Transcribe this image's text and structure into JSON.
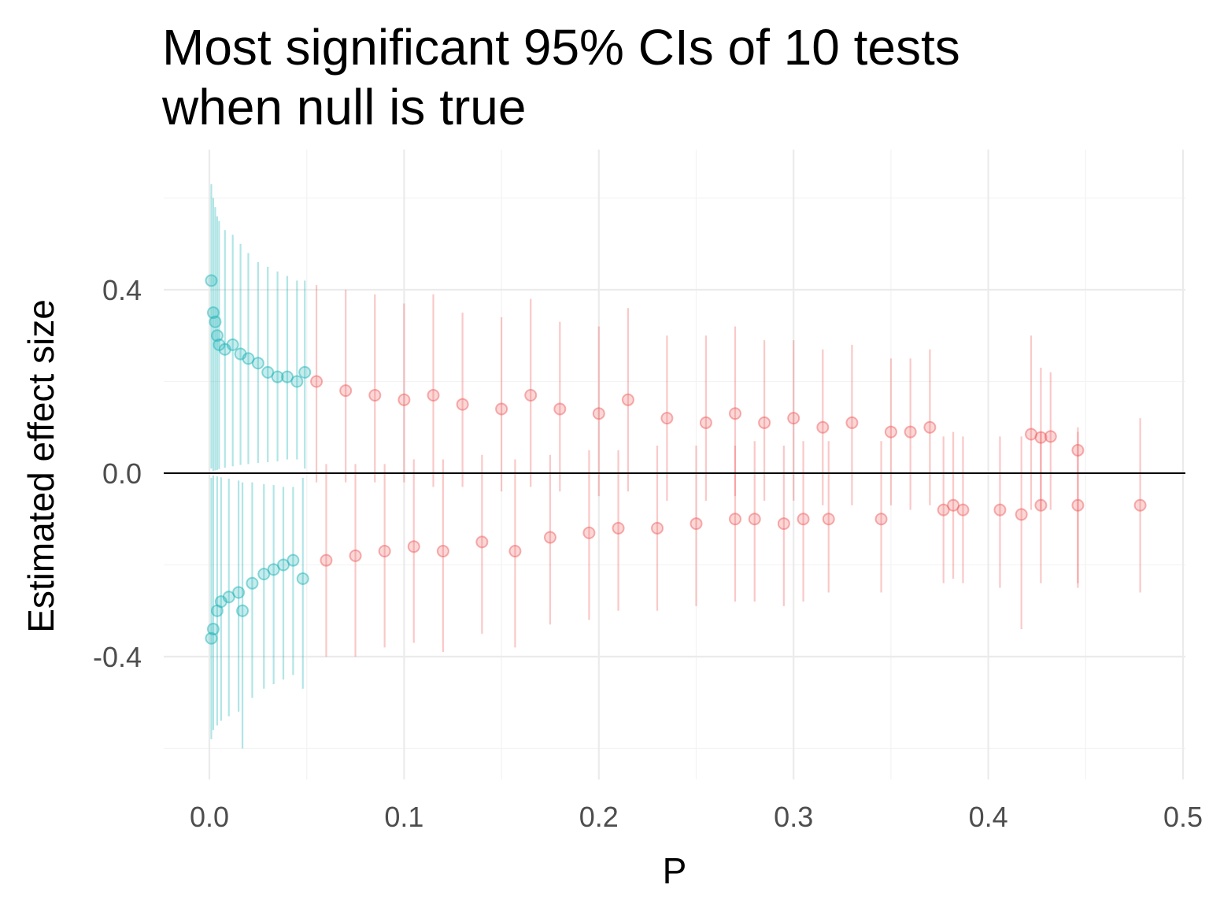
{
  "chart_data": {
    "type": "scatter",
    "title_lines": [
      "Most significant 95% CIs of 10 tests",
      "when null is true"
    ],
    "xlabel": "P",
    "ylabel": "Estimated effect size",
    "xlim": [
      -0.023,
      0.5
    ],
    "ylim": [
      -0.65,
      0.65
    ],
    "x_ticks": [
      0.0,
      0.1,
      0.2,
      0.3,
      0.4,
      0.5
    ],
    "x_tick_labels": [
      "0.0",
      "0.1",
      "0.2",
      "0.3",
      "0.4",
      "0.5"
    ],
    "y_ticks": [
      0.4,
      0.0,
      -0.4
    ],
    "y_tick_labels": [
      "0.4",
      "0.0",
      "-0.4"
    ],
    "reference_line_y": 0.0,
    "grid": true,
    "legend": "none",
    "colors": {
      "significant": "#1fb5b8",
      "not_significant": "#f06161",
      "reference_line": "#000000",
      "grid_major": "#ebebeb",
      "grid_minor": "#f3f3f3"
    },
    "series": [
      {
        "color": "#1fb5b8",
        "points": [
          {
            "p": 0.001,
            "est": 0.42,
            "lo": 0.01,
            "hi": 0.63
          },
          {
            "p": 0.002,
            "est": 0.35,
            "lo": 0.005,
            "hi": 0.6
          },
          {
            "p": 0.003,
            "est": 0.33,
            "lo": 0.006,
            "hi": 0.58
          },
          {
            "p": 0.004,
            "est": 0.3,
            "lo": 0.007,
            "hi": 0.56
          },
          {
            "p": 0.005,
            "est": 0.28,
            "lo": 0.009,
            "hi": 0.55
          },
          {
            "p": 0.008,
            "est": 0.27,
            "lo": 0.012,
            "hi": 0.53
          },
          {
            "p": 0.012,
            "est": 0.28,
            "lo": 0.015,
            "hi": 0.52
          },
          {
            "p": 0.016,
            "est": 0.26,
            "lo": 0.018,
            "hi": 0.5
          },
          {
            "p": 0.02,
            "est": 0.25,
            "lo": 0.02,
            "hi": 0.48
          },
          {
            "p": 0.025,
            "est": 0.24,
            "lo": 0.022,
            "hi": 0.46
          },
          {
            "p": 0.03,
            "est": 0.22,
            "lo": 0.024,
            "hi": 0.45
          },
          {
            "p": 0.035,
            "est": 0.21,
            "lo": 0.026,
            "hi": 0.44
          },
          {
            "p": 0.04,
            "est": 0.21,
            "lo": 0.03,
            "hi": 0.43
          },
          {
            "p": 0.045,
            "est": 0.2,
            "lo": 0.03,
            "hi": 0.42
          },
          {
            "p": 0.049,
            "est": 0.22,
            "lo": 0.01,
            "hi": 0.42
          },
          {
            "p": 0.001,
            "est": -0.36,
            "lo": -0.58,
            "hi": -0.01
          },
          {
            "p": 0.002,
            "est": -0.34,
            "lo": -0.56,
            "hi": -0.005
          },
          {
            "p": 0.004,
            "est": -0.3,
            "lo": -0.55,
            "hi": -0.007
          },
          {
            "p": 0.006,
            "est": -0.28,
            "lo": -0.54,
            "hi": -0.009
          },
          {
            "p": 0.01,
            "est": -0.27,
            "lo": -0.53,
            "hi": -0.012
          },
          {
            "p": 0.015,
            "est": -0.26,
            "lo": -0.52,
            "hi": -0.016
          },
          {
            "p": 0.017,
            "est": -0.3,
            "lo": -0.6,
            "hi": -0.02
          },
          {
            "p": 0.022,
            "est": -0.24,
            "lo": -0.49,
            "hi": -0.02
          },
          {
            "p": 0.028,
            "est": -0.22,
            "lo": -0.47,
            "hi": -0.024
          },
          {
            "p": 0.033,
            "est": -0.21,
            "lo": -0.46,
            "hi": -0.026
          },
          {
            "p": 0.038,
            "est": -0.2,
            "lo": -0.45,
            "hi": -0.03
          },
          {
            "p": 0.043,
            "est": -0.19,
            "lo": -0.44,
            "hi": -0.03
          },
          {
            "p": 0.048,
            "est": -0.23,
            "lo": -0.47,
            "hi": -0.01
          }
        ]
      },
      {
        "color": "#f06161",
        "points": [
          {
            "p": 0.055,
            "est": 0.2,
            "lo": -0.02,
            "hi": 0.41
          },
          {
            "p": 0.07,
            "est": 0.18,
            "lo": -0.02,
            "hi": 0.4
          },
          {
            "p": 0.085,
            "est": 0.17,
            "lo": -0.02,
            "hi": 0.39
          },
          {
            "p": 0.1,
            "est": 0.16,
            "lo": -0.02,
            "hi": 0.37
          },
          {
            "p": 0.115,
            "est": 0.17,
            "lo": -0.03,
            "hi": 0.39
          },
          {
            "p": 0.13,
            "est": 0.15,
            "lo": -0.03,
            "hi": 0.35
          },
          {
            "p": 0.15,
            "est": 0.14,
            "lo": -0.04,
            "hi": 0.34
          },
          {
            "p": 0.165,
            "est": 0.17,
            "lo": -0.03,
            "hi": 0.38
          },
          {
            "p": 0.18,
            "est": 0.14,
            "lo": -0.04,
            "hi": 0.33
          },
          {
            "p": 0.2,
            "est": 0.13,
            "lo": -0.05,
            "hi": 0.32
          },
          {
            "p": 0.215,
            "est": 0.16,
            "lo": -0.04,
            "hi": 0.36
          },
          {
            "p": 0.235,
            "est": 0.12,
            "lo": -0.06,
            "hi": 0.3
          },
          {
            "p": 0.255,
            "est": 0.11,
            "lo": -0.06,
            "hi": 0.3
          },
          {
            "p": 0.27,
            "est": 0.13,
            "lo": -0.05,
            "hi": 0.32
          },
          {
            "p": 0.285,
            "est": 0.11,
            "lo": -0.06,
            "hi": 0.29
          },
          {
            "p": 0.3,
            "est": 0.12,
            "lo": -0.06,
            "hi": 0.29
          },
          {
            "p": 0.315,
            "est": 0.1,
            "lo": -0.07,
            "hi": 0.27
          },
          {
            "p": 0.33,
            "est": 0.11,
            "lo": -0.07,
            "hi": 0.28
          },
          {
            "p": 0.35,
            "est": 0.09,
            "lo": -0.07,
            "hi": 0.25
          },
          {
            "p": 0.36,
            "est": 0.09,
            "lo": -0.08,
            "hi": 0.25
          },
          {
            "p": 0.37,
            "est": 0.1,
            "lo": -0.07,
            "hi": 0.27
          },
          {
            "p": 0.422,
            "est": 0.085,
            "lo": -0.08,
            "hi": 0.3
          },
          {
            "p": 0.427,
            "est": 0.078,
            "lo": -0.08,
            "hi": 0.23
          },
          {
            "p": 0.432,
            "est": 0.08,
            "lo": -0.08,
            "hi": 0.22
          },
          {
            "p": 0.446,
            "est": 0.05,
            "lo": -0.25,
            "hi": 0.1
          },
          {
            "p": 0.06,
            "est": -0.19,
            "lo": -0.4,
            "hi": 0.02
          },
          {
            "p": 0.075,
            "est": -0.18,
            "lo": -0.4,
            "hi": 0.02
          },
          {
            "p": 0.09,
            "est": -0.17,
            "lo": -0.38,
            "hi": 0.02
          },
          {
            "p": 0.105,
            "est": -0.16,
            "lo": -0.37,
            "hi": 0.03
          },
          {
            "p": 0.12,
            "est": -0.17,
            "lo": -0.39,
            "hi": 0.03
          },
          {
            "p": 0.14,
            "est": -0.15,
            "lo": -0.35,
            "hi": 0.04
          },
          {
            "p": 0.157,
            "est": -0.17,
            "lo": -0.38,
            "hi": 0.03
          },
          {
            "p": 0.175,
            "est": -0.14,
            "lo": -0.33,
            "hi": 0.04
          },
          {
            "p": 0.195,
            "est": -0.13,
            "lo": -0.32,
            "hi": 0.05
          },
          {
            "p": 0.21,
            "est": -0.12,
            "lo": -0.3,
            "hi": 0.05
          },
          {
            "p": 0.23,
            "est": -0.12,
            "lo": -0.3,
            "hi": 0.06
          },
          {
            "p": 0.25,
            "est": -0.11,
            "lo": -0.29,
            "hi": 0.06
          },
          {
            "p": 0.27,
            "est": -0.1,
            "lo": -0.28,
            "hi": 0.06
          },
          {
            "p": 0.28,
            "est": -0.1,
            "lo": -0.28,
            "hi": 0.07
          },
          {
            "p": 0.295,
            "est": -0.11,
            "lo": -0.29,
            "hi": 0.06
          },
          {
            "p": 0.305,
            "est": -0.1,
            "lo": -0.28,
            "hi": 0.07
          },
          {
            "p": 0.318,
            "est": -0.1,
            "lo": -0.26,
            "hi": 0.07
          },
          {
            "p": 0.345,
            "est": -0.1,
            "lo": -0.26,
            "hi": 0.07
          },
          {
            "p": 0.377,
            "est": -0.08,
            "lo": -0.24,
            "hi": 0.08
          },
          {
            "p": 0.382,
            "est": -0.07,
            "lo": -0.23,
            "hi": 0.09
          },
          {
            "p": 0.387,
            "est": -0.08,
            "lo": -0.24,
            "hi": 0.08
          },
          {
            "p": 0.406,
            "est": -0.08,
            "lo": -0.25,
            "hi": 0.08
          },
          {
            "p": 0.417,
            "est": -0.09,
            "lo": -0.34,
            "hi": 0.08
          },
          {
            "p": 0.427,
            "est": -0.07,
            "lo": -0.24,
            "hi": 0.09
          },
          {
            "p": 0.446,
            "est": -0.07,
            "lo": -0.24,
            "hi": 0.09
          },
          {
            "p": 0.478,
            "est": -0.07,
            "lo": -0.26,
            "hi": 0.12
          }
        ]
      }
    ]
  }
}
